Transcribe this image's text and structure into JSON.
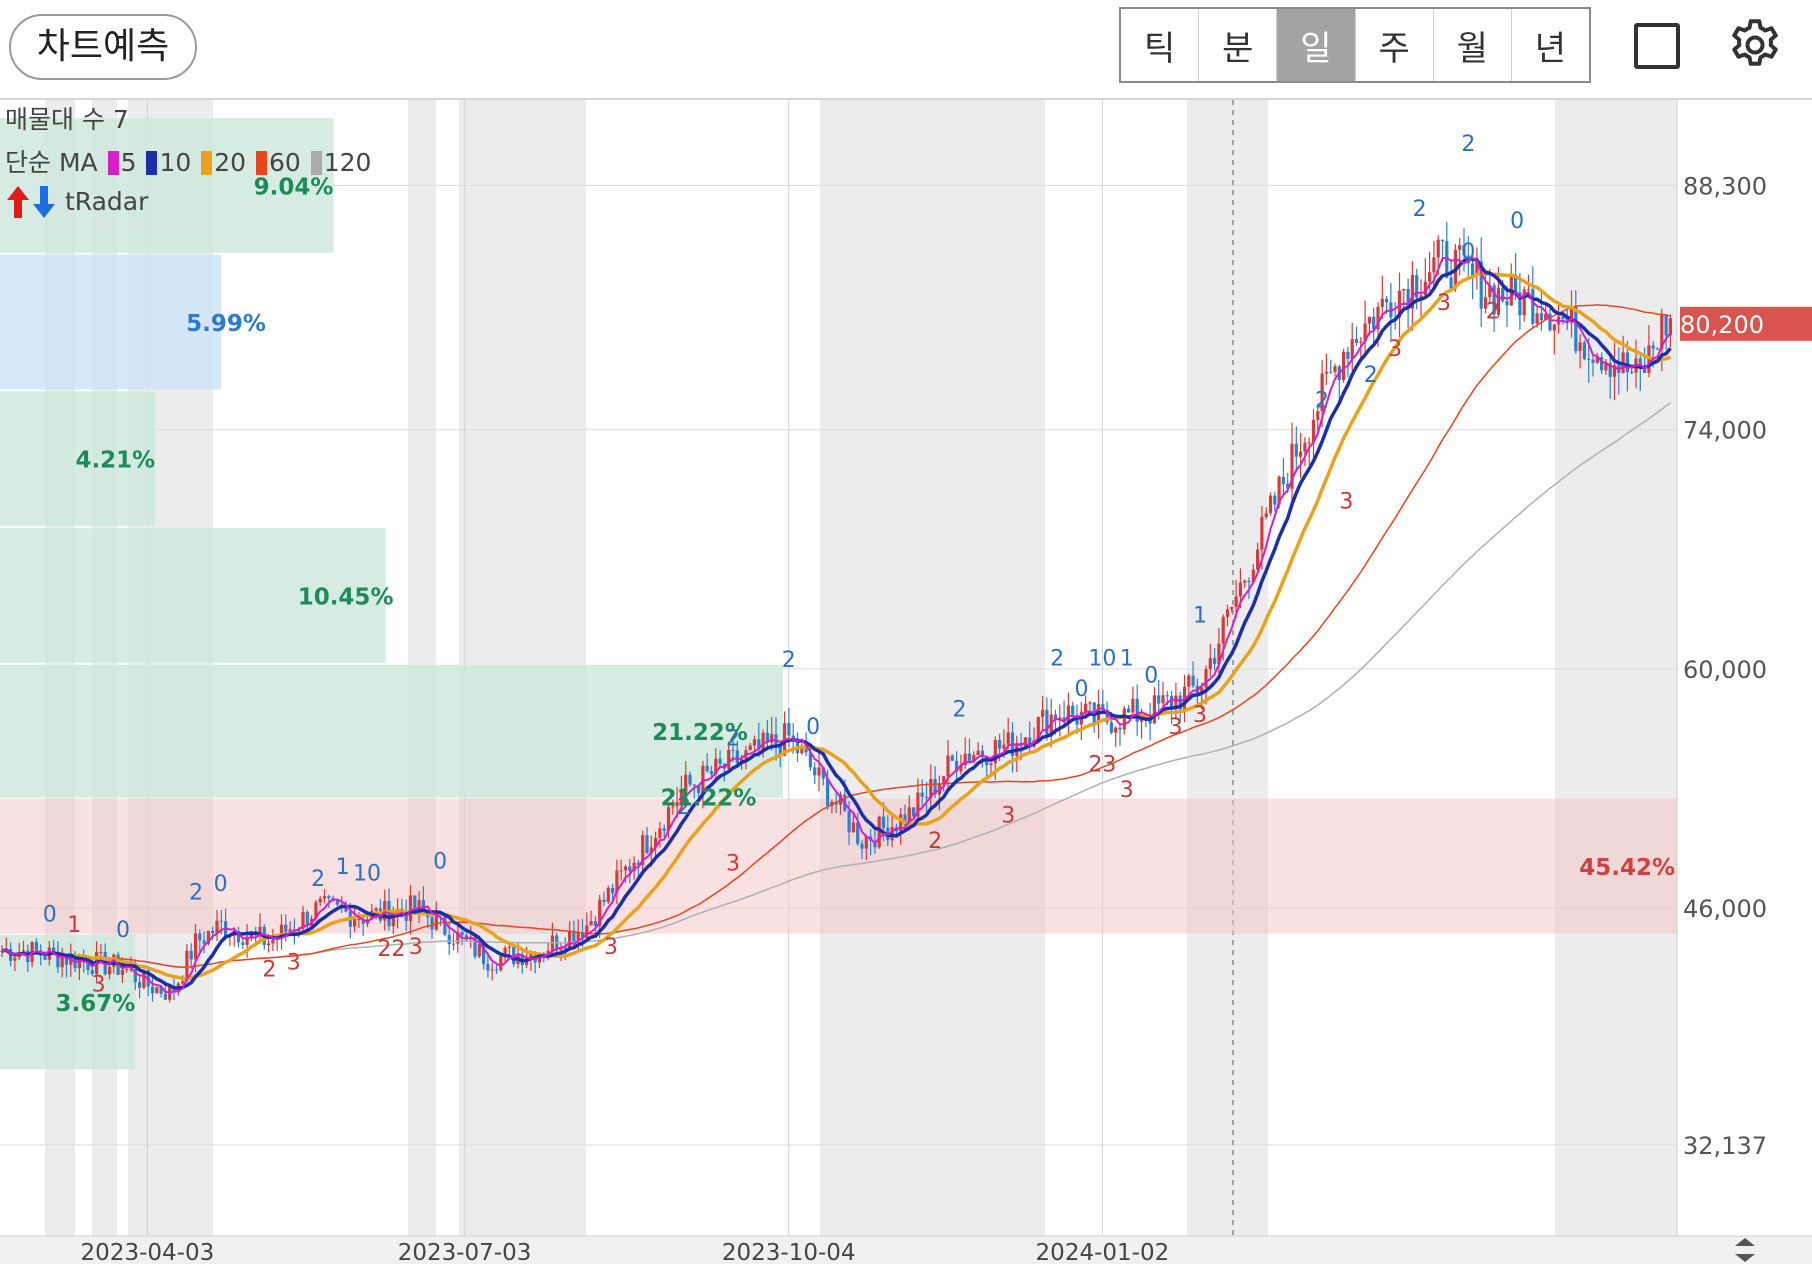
{
  "header": {
    "predict_button": "차트예측",
    "period_tabs": [
      {
        "label": "틱",
        "active": false
      },
      {
        "label": "분",
        "active": false
      },
      {
        "label": "일",
        "active": true
      },
      {
        "label": "주",
        "active": false
      },
      {
        "label": "월",
        "active": false
      },
      {
        "label": "년",
        "active": false
      }
    ],
    "icons": [
      "square-icon",
      "gear-icon"
    ]
  },
  "indicators": {
    "volume_profile": "매물대 수 7",
    "ma_label": "단순 MA",
    "ma_periods": [
      "5",
      "10",
      "20",
      "60",
      "120"
    ],
    "ma_colors": [
      "#d51fc8",
      "#1a2fa8",
      "#e8a21e",
      "#e8461e",
      "#aaaaaa"
    ],
    "tradar_label": "tRadar",
    "tradar_icons": [
      "up-arrow-icon",
      "down-arrow-icon"
    ]
  },
  "chart_data": {
    "type": "candlestick",
    "price_scale": {
      "ticks": [
        "88,300",
        "74,000",
        "60,000",
        "46,000",
        "32,137"
      ],
      "tick_values": [
        88300,
        74000,
        60000,
        46000,
        32137
      ],
      "range": [
        26800,
        93300
      ]
    },
    "current_price": {
      "label": "80,200",
      "value": 80200
    },
    "x_ticks": [
      "2023-04-03",
      "2023-07-03",
      "2023-10-04",
      "2024-01-02"
    ],
    "volume_profile": [
      {
        "label": "9.04%",
        "value": 9.04,
        "price_range": [
          84300,
          92300
        ],
        "highlight": false
      },
      {
        "label": "5.99%",
        "value": 5.99,
        "price_range": [
          76300,
          84300
        ],
        "highlight": "current"
      },
      {
        "label": "4.21%",
        "value": 4.21,
        "price_range": [
          68300,
          76300
        ],
        "highlight": false
      },
      {
        "label": "10.45%",
        "value": 10.45,
        "price_range": [
          60300,
          68300
        ],
        "highlight": false
      },
      {
        "label": "21.22%",
        "value": 21.22,
        "price_range": [
          52400,
          60300
        ],
        "highlight": false
      },
      {
        "label": "45.42%",
        "value": 45.42,
        "price_range": [
          44500,
          52400
        ],
        "highlight": "max"
      },
      {
        "label": "3.67%",
        "value": 3.67,
        "price_range": [
          36500,
          44500
        ],
        "highlight": false
      }
    ],
    "close_series": [
      {
        "date": "2023-02-27",
        "close": 43500
      },
      {
        "date": "2023-03-13",
        "close": 43000
      },
      {
        "date": "2023-03-27",
        "close": 42500
      },
      {
        "date": "2023-04-03",
        "close": 41500
      },
      {
        "date": "2023-04-10",
        "close": 41000
      },
      {
        "date": "2023-04-17",
        "close": 44000
      },
      {
        "date": "2023-04-24",
        "close": 45000
      },
      {
        "date": "2023-05-08",
        "close": 44000
      },
      {
        "date": "2023-05-22",
        "close": 46000
      },
      {
        "date": "2023-06-05",
        "close": 45500
      },
      {
        "date": "2023-06-19",
        "close": 46000
      },
      {
        "date": "2023-07-03",
        "close": 44000
      },
      {
        "date": "2023-07-10",
        "close": 43000
      },
      {
        "date": "2023-07-24",
        "close": 43500
      },
      {
        "date": "2023-08-07",
        "close": 45000
      },
      {
        "date": "2023-08-21",
        "close": 49000
      },
      {
        "date": "2023-09-04",
        "close": 53000
      },
      {
        "date": "2023-09-18",
        "close": 54500
      },
      {
        "date": "2023-10-04",
        "close": 56000
      },
      {
        "date": "2023-10-11",
        "close": 54000
      },
      {
        "date": "2023-10-25",
        "close": 50000
      },
      {
        "date": "2023-11-08",
        "close": 51500
      },
      {
        "date": "2023-11-22",
        "close": 55000
      },
      {
        "date": "2023-12-06",
        "close": 55500
      },
      {
        "date": "2023-12-20",
        "close": 57500
      },
      {
        "date": "2024-01-02",
        "close": 57000
      },
      {
        "date": "2024-01-16",
        "close": 57500
      },
      {
        "date": "2024-01-30",
        "close": 59000
      },
      {
        "date": "2024-02-13",
        "close": 66000
      },
      {
        "date": "2024-02-27",
        "close": 73000
      },
      {
        "date": "2024-03-12",
        "close": 79000
      },
      {
        "date": "2024-03-26",
        "close": 82000
      },
      {
        "date": "2024-04-09",
        "close": 84000
      },
      {
        "date": "2024-04-23",
        "close": 82000
      },
      {
        "date": "2024-05-07",
        "close": 81500
      },
      {
        "date": "2024-05-21",
        "close": 79000
      },
      {
        "date": "2024-06-04",
        "close": 77000
      },
      {
        "date": "2024-06-11",
        "close": 80200
      }
    ],
    "signals": [
      {
        "text": "0",
        "date": "2023-03-06",
        "price": 45200,
        "color": "blue"
      },
      {
        "text": "1",
        "date": "2023-03-13",
        "price": 44600,
        "color": "red"
      },
      {
        "text": "3",
        "date": "2023-03-20",
        "price": 41100,
        "color": "red"
      },
      {
        "text": "0",
        "date": "2023-03-27",
        "price": 44300,
        "color": "blue"
      },
      {
        "text": "2",
        "date": "2023-04-17",
        "price": 46500,
        "color": "blue"
      },
      {
        "text": "0",
        "date": "2023-04-24",
        "price": 47000,
        "color": "blue"
      },
      {
        "text": "2",
        "date": "2023-05-08",
        "price": 42000,
        "color": "red"
      },
      {
        "text": "3",
        "date": "2023-05-15",
        "price": 42400,
        "color": "red"
      },
      {
        "text": "2",
        "date": "2023-05-22",
        "price": 47300,
        "color": "blue"
      },
      {
        "text": "1",
        "date": "2023-05-29",
        "price": 48000,
        "color": "blue"
      },
      {
        "text": "10",
        "date": "2023-06-05",
        "price": 47600,
        "color": "blue"
      },
      {
        "text": "22",
        "date": "2023-06-12",
        "price": 43200,
        "color": "red"
      },
      {
        "text": "3",
        "date": "2023-06-19",
        "price": 43300,
        "color": "red"
      },
      {
        "text": "0",
        "date": "2023-06-26",
        "price": 48300,
        "color": "blue"
      },
      {
        "text": "3",
        "date": "2023-08-14",
        "price": 43300,
        "color": "red"
      },
      {
        "text": "2",
        "date": "2023-09-04",
        "price": 51500,
        "color": "blue"
      },
      {
        "text": "21.22%",
        "date": "2023-09-11",
        "price": 52000,
        "color": "label"
      },
      {
        "text": "3",
        "date": "2023-09-18",
        "price": 48200,
        "color": "red"
      },
      {
        "text": "2",
        "date": "2023-09-18",
        "price": 55500,
        "color": "blue"
      },
      {
        "text": "2",
        "date": "2023-10-04",
        "price": 60100,
        "color": "blue"
      },
      {
        "text": "0",
        "date": "2023-10-11",
        "price": 56200,
        "color": "blue"
      },
      {
        "text": "2",
        "date": "2023-11-15",
        "price": 49500,
        "color": "red"
      },
      {
        "text": "2",
        "date": "2023-11-22",
        "price": 57200,
        "color": "blue"
      },
      {
        "text": "3",
        "date": "2023-12-06",
        "price": 51000,
        "color": "red"
      },
      {
        "text": "2",
        "date": "2023-12-20",
        "price": 60200,
        "color": "blue"
      },
      {
        "text": "0",
        "date": "2023-12-27",
        "price": 58400,
        "color": "blue"
      },
      {
        "text": "10",
        "date": "2024-01-02",
        "price": 60200,
        "color": "blue"
      },
      {
        "text": "23",
        "date": "2024-01-02",
        "price": 54000,
        "color": "red"
      },
      {
        "text": "1",
        "date": "2024-01-09",
        "price": 60200,
        "color": "blue"
      },
      {
        "text": "3",
        "date": "2024-01-09",
        "price": 52500,
        "color": "red"
      },
      {
        "text": "0",
        "date": "2024-01-16",
        "price": 59200,
        "color": "blue"
      },
      {
        "text": "3",
        "date": "2024-01-23",
        "price": 56200,
        "color": "red"
      },
      {
        "text": "3",
        "date": "2024-01-30",
        "price": 56900,
        "color": "red"
      },
      {
        "text": "1",
        "date": "2024-01-30",
        "price": 62700,
        "color": "blue"
      },
      {
        "text": "2",
        "date": "2024-03-05",
        "price": 75300,
        "color": "blue"
      },
      {
        "text": "3",
        "date": "2024-03-12",
        "price": 69400,
        "color": "red"
      },
      {
        "text": "2",
        "date": "2024-03-19",
        "price": 76800,
        "color": "blue"
      },
      {
        "text": "3",
        "date": "2024-03-26",
        "price": 78300,
        "color": "red"
      },
      {
        "text": "2",
        "date": "2024-04-02",
        "price": 86500,
        "color": "blue"
      },
      {
        "text": "3",
        "date": "2024-04-09",
        "price": 81000,
        "color": "red"
      },
      {
        "text": "2",
        "date": "2024-04-16",
        "price": 90300,
        "color": "blue"
      },
      {
        "text": "0",
        "date": "2024-04-16",
        "price": 84000,
        "color": "blue"
      },
      {
        "text": "2",
        "date": "2024-04-23",
        "price": 80500,
        "color": "red"
      },
      {
        "text": "0",
        "date": "2024-04-30",
        "price": 85800,
        "color": "blue"
      }
    ]
  }
}
